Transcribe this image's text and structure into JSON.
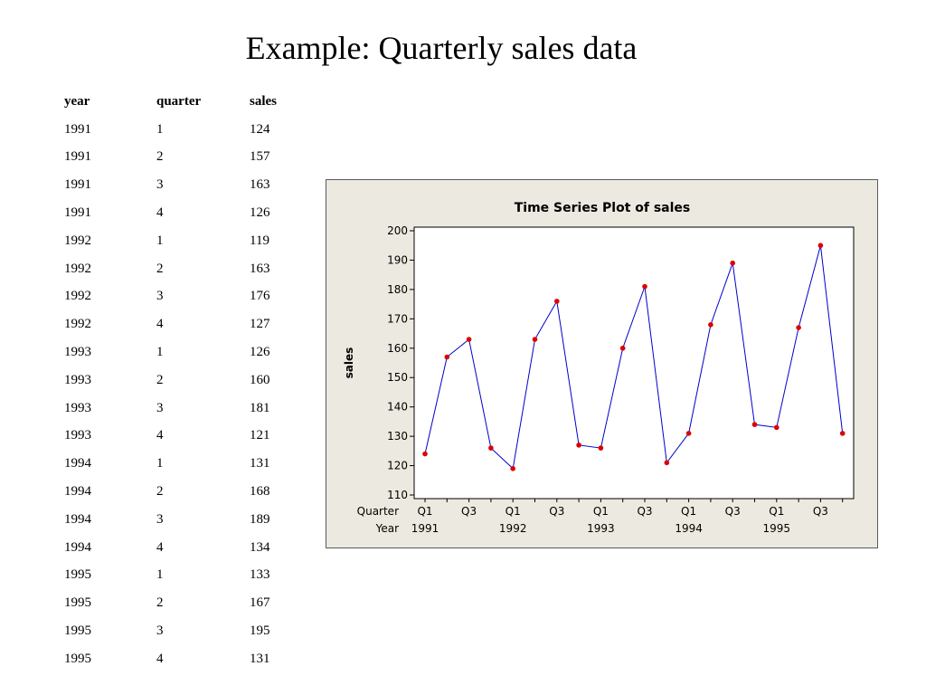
{
  "slide": {
    "title": "Example: Quarterly sales data"
  },
  "table": {
    "headers": [
      "year",
      "quarter",
      "sales"
    ],
    "rows": [
      [
        "1991",
        "1",
        "124"
      ],
      [
        "1991",
        "2",
        "157"
      ],
      [
        "1991",
        "3",
        "163"
      ],
      [
        "1991",
        "4",
        "126"
      ],
      [
        "1992",
        "1",
        "119"
      ],
      [
        "1992",
        "2",
        "163"
      ],
      [
        "1992",
        "3",
        "176"
      ],
      [
        "1992",
        "4",
        "127"
      ],
      [
        "1993",
        "1",
        "126"
      ],
      [
        "1993",
        "2",
        "160"
      ],
      [
        "1993",
        "3",
        "181"
      ],
      [
        "1993",
        "4",
        "121"
      ],
      [
        "1994",
        "1",
        "131"
      ],
      [
        "1994",
        "2",
        "168"
      ],
      [
        "1994",
        "3",
        "189"
      ],
      [
        "1994",
        "4",
        "134"
      ],
      [
        "1995",
        "1",
        "133"
      ],
      [
        "1995",
        "2",
        "167"
      ],
      [
        "1995",
        "3",
        "195"
      ],
      [
        "1995",
        "4",
        "131"
      ]
    ]
  },
  "chart_data": {
    "type": "line",
    "title": "Time Series Plot of sales",
    "ylabel": "sales",
    "ylim": [
      110,
      200
    ],
    "yticks": [
      110,
      120,
      130,
      140,
      150,
      160,
      170,
      180,
      190,
      200
    ],
    "x_label_rows": [
      "Quarter",
      "Year"
    ],
    "x_tick_labels": [
      {
        "quarter": "Q1",
        "year": "1991"
      },
      {
        "quarter": "",
        "year": ""
      },
      {
        "quarter": "Q3",
        "year": ""
      },
      {
        "quarter": "",
        "year": ""
      },
      {
        "quarter": "Q1",
        "year": "1992"
      },
      {
        "quarter": "",
        "year": ""
      },
      {
        "quarter": "Q3",
        "year": ""
      },
      {
        "quarter": "",
        "year": ""
      },
      {
        "quarter": "Q1",
        "year": "1993"
      },
      {
        "quarter": "",
        "year": ""
      },
      {
        "quarter": "Q3",
        "year": ""
      },
      {
        "quarter": "",
        "year": ""
      },
      {
        "quarter": "Q1",
        "year": "1994"
      },
      {
        "quarter": "",
        "year": ""
      },
      {
        "quarter": "Q3",
        "year": ""
      },
      {
        "quarter": "",
        "year": ""
      },
      {
        "quarter": "Q1",
        "year": "1995"
      },
      {
        "quarter": "",
        "year": ""
      },
      {
        "quarter": "Q3",
        "year": ""
      },
      {
        "quarter": "",
        "year": ""
      }
    ],
    "series": [
      {
        "values": [
          124,
          157,
          163,
          126,
          119,
          163,
          176,
          127,
          126,
          160,
          181,
          121,
          131,
          168,
          189,
          134,
          133,
          167,
          195,
          131
        ]
      }
    ],
    "line_color": "#0000cc",
    "marker_color": "#dd0000",
    "panel_background": "#ece9e0",
    "grid": false
  }
}
